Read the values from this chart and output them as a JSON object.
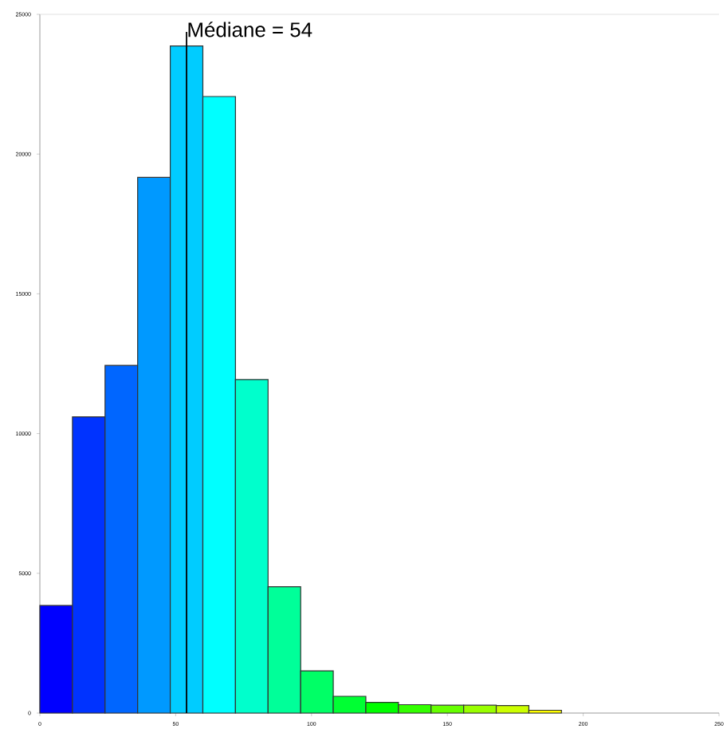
{
  "chart_data": {
    "type": "histogram",
    "bins": [
      0,
      12,
      24,
      36,
      48,
      60,
      72,
      84,
      96,
      108,
      120,
      132,
      144,
      156,
      168,
      180,
      192
    ],
    "values": [
      3850,
      10600,
      12440,
      19170,
      23870,
      22060,
      11930,
      4520,
      1510,
      600,
      380,
      300,
      280,
      280,
      270,
      100
    ],
    "colors": [
      "#0000ff",
      "#0033ff",
      "#0066ff",
      "#0099ff",
      "#00ccff",
      "#00ffff",
      "#00ffcc",
      "#00ff99",
      "#00ff66",
      "#00ff33",
      "#00ff00",
      "#33ff00",
      "#66ff00",
      "#99ff00",
      "#ccff00",
      "#ffff00"
    ],
    "xlim": [
      0,
      250
    ],
    "ylim": [
      0,
      25000
    ],
    "xticks": [
      0,
      50,
      100,
      150,
      200,
      250
    ],
    "yticks": [
      0,
      5000,
      10000,
      15000,
      20000,
      25000
    ],
    "ref_lines": [
      {
        "axis": "x",
        "value": 54,
        "label": "Médiane = 54",
        "color": "#000000"
      }
    ],
    "grid": false
  }
}
